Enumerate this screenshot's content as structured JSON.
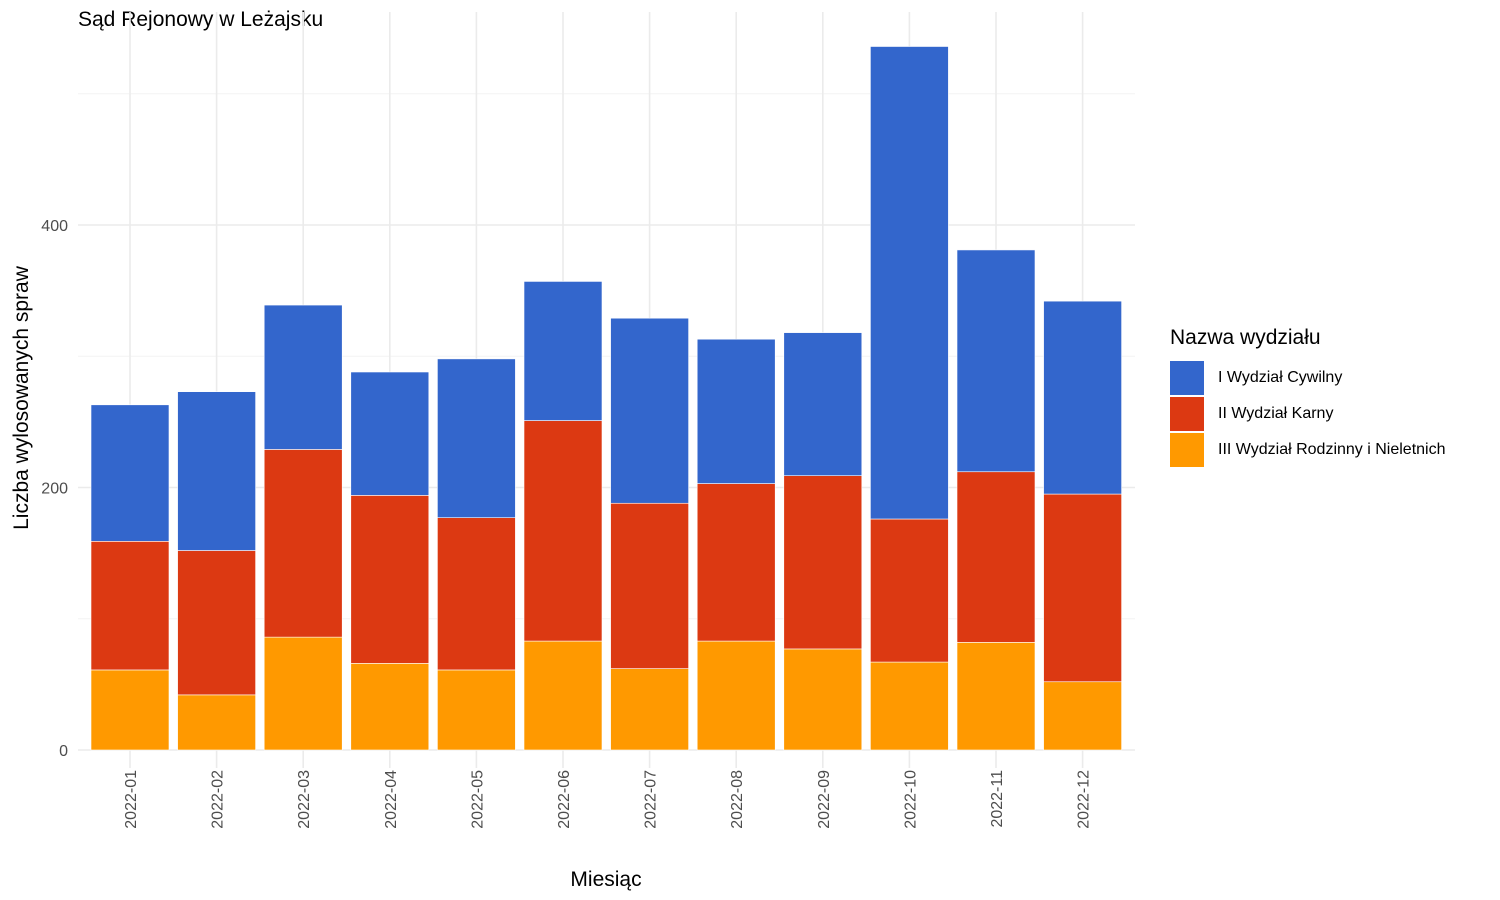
{
  "chart_data": {
    "type": "bar",
    "stacked": true,
    "title": "Sąd Rejonowy w Leżajsku",
    "xlabel": "Miesiąc",
    "ylabel": "Liczba wylosowanych spraw",
    "ylim": [
      0,
      550
    ],
    "y_ticks": [
      0,
      200,
      400
    ],
    "grid": true,
    "legend_position": "right",
    "legend_title": "Nazwa wydziału",
    "categories": [
      "2022-01",
      "2022-02",
      "2022-03",
      "2022-04",
      "2022-05",
      "2022-06",
      "2022-07",
      "2022-08",
      "2022-09",
      "2022-10",
      "2022-11",
      "2022-12"
    ],
    "series": [
      {
        "name": "III Wydział Rodzinny i Nieletnich",
        "color": "#FF9900",
        "values": [
          61,
          42,
          86,
          66,
          61,
          83,
          62,
          83,
          77,
          67,
          82,
          52
        ]
      },
      {
        "name": "II Wydział Karny",
        "color": "#DC3912",
        "values": [
          98,
          110,
          143,
          128,
          116,
          168,
          126,
          120,
          132,
          109,
          130,
          143
        ]
      },
      {
        "name": "I Wydział Cywilny",
        "color": "#3366CC",
        "values": [
          104,
          121,
          110,
          94,
          121,
          106,
          141,
          110,
          109,
          360,
          169,
          147
        ]
      }
    ],
    "legend_order": [
      "I Wydział Cywilny",
      "II Wydział Karny",
      "III Wydział Rodzinny i Nieletnich"
    ]
  }
}
